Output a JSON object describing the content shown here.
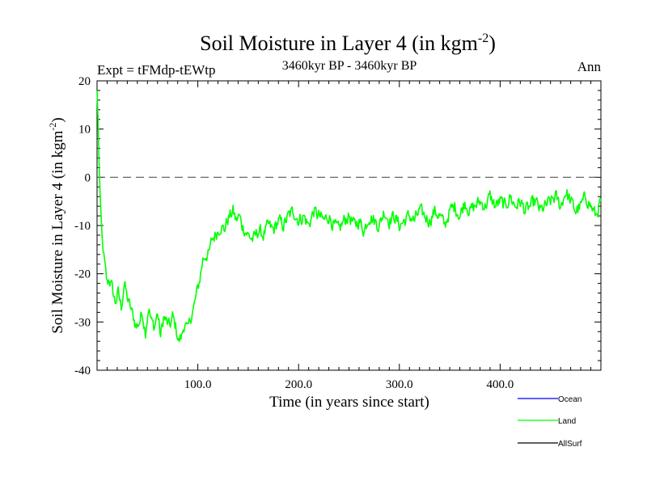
{
  "chart_data": {
    "type": "line",
    "title": "Soil Moisture in Layer 4 (in kgm",
    "title_sup": "-2",
    "title_close": ")",
    "subtitle_left": "Expt = tFMdp-tEWtp",
    "subtitle_center": "3460kyr BP - 3460kyr BP",
    "subtitle_right": "Ann",
    "xlabel": "Time (in years since start)",
    "ylabel": "Soil Moisture in Layer 4 (in kgm",
    "ylabel_sup": "-2",
    "ylabel_close": ")",
    "xlim": [
      0,
      500
    ],
    "ylim": [
      -40,
      20
    ],
    "x_ticks": [
      {
        "value": 100,
        "label": "100.0"
      },
      {
        "value": 200,
        "label": "200.0"
      },
      {
        "value": 300,
        "label": "300.0"
      },
      {
        "value": 400,
        "label": "400.0"
      }
    ],
    "y_ticks": [
      {
        "value": 20,
        "label": "20"
      },
      {
        "value": 10,
        "label": "10"
      },
      {
        "value": 0,
        "label": "0"
      },
      {
        "value": -10,
        "label": "-10"
      },
      {
        "value": -20,
        "label": "-20"
      },
      {
        "value": -30,
        "label": "-30"
      },
      {
        "value": -40,
        "label": "-40"
      }
    ],
    "reference_line": 0,
    "legend": [
      {
        "name": "Ocean",
        "color": "#0000ff"
      },
      {
        "name": "Land",
        "color": "#00ff00"
      },
      {
        "name": "AllSurf",
        "color": "#000000"
      }
    ],
    "series": [
      {
        "name": "Land",
        "color": "#00ff00",
        "x": [
          0,
          1,
          2,
          3,
          4,
          5,
          6,
          8,
          10,
          12,
          15,
          18,
          21,
          24,
          27,
          30,
          33,
          36,
          39,
          42,
          45,
          48,
          51,
          54,
          57,
          60,
          63,
          66,
          69,
          72,
          75,
          78,
          81,
          84,
          87,
          90,
          93,
          96,
          99,
          102,
          105,
          108,
          111,
          114,
          117,
          120,
          123,
          126,
          129,
          132,
          135,
          138,
          141,
          144,
          147,
          150,
          155,
          160,
          165,
          170,
          175,
          180,
          185,
          190,
          195,
          200,
          205,
          210,
          215,
          220,
          225,
          230,
          235,
          240,
          245,
          250,
          255,
          260,
          265,
          270,
          275,
          280,
          285,
          290,
          295,
          300,
          305,
          310,
          315,
          320,
          325,
          330,
          335,
          340,
          345,
          350,
          355,
          360,
          365,
          370,
          375,
          380,
          385,
          390,
          395,
          400,
          405,
          410,
          415,
          420,
          425,
          430,
          435,
          440,
          445,
          450,
          455,
          460,
          465,
          470,
          475,
          480,
          485,
          490,
          495,
          500
        ],
        "values": [
          18,
          12,
          3,
          -3,
          -8,
          -12,
          -15,
          -19,
          -22,
          -21,
          -23,
          -26,
          -24,
          -27,
          -22,
          -25,
          -27,
          -29,
          -31,
          -30,
          -28,
          -32,
          -27,
          -30,
          -31,
          -28,
          -33,
          -29,
          -30,
          -31,
          -29,
          -31,
          -34,
          -33,
          -30,
          -32,
          -29,
          -27,
          -24,
          -21,
          -17,
          -16,
          -16,
          -13,
          -12,
          -11,
          -10,
          -11,
          -9,
          -8,
          -7,
          -9,
          -8,
          -10,
          -11,
          -12,
          -13,
          -11,
          -12,
          -10,
          -11,
          -9,
          -10,
          -8,
          -7,
          -9,
          -8,
          -10,
          -7,
          -8,
          -9,
          -8,
          -10,
          -11,
          -9,
          -8,
          -10,
          -9,
          -11,
          -8,
          -9,
          -10,
          -7,
          -9,
          -8,
          -10,
          -9,
          -8,
          -9,
          -7,
          -8,
          -9,
          -7,
          -8,
          -10,
          -7,
          -6,
          -8,
          -5,
          -7,
          -6,
          -5,
          -6,
          -4,
          -6,
          -5,
          -6,
          -4,
          -6,
          -5,
          -7,
          -6,
          -5,
          -7,
          -6,
          -5,
          -4,
          -6,
          -3,
          -5,
          -7,
          -6,
          -4,
          -6,
          -8,
          -5
        ]
      }
    ]
  }
}
